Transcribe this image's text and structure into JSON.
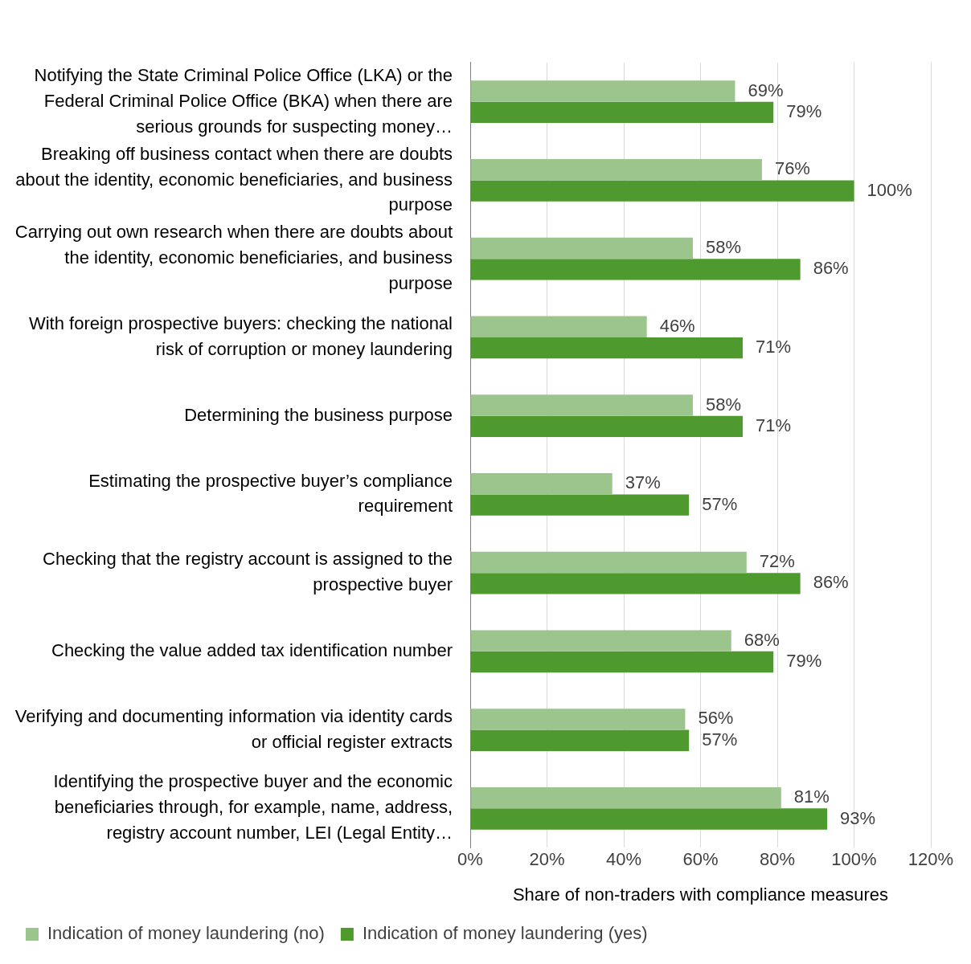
{
  "chart_data": {
    "type": "bar",
    "orientation": "horizontal",
    "xlabel": "Share of non-traders with compliance measures",
    "categories": [
      "Notifying the State Criminal Police Office (LKA) or the Federal Criminal Police Office (BKA) when there are serious grounds for suspecting money…",
      "Breaking off business contact when there are doubts about the identity, economic beneficiaries, and business purpose",
      "Carrying out own research when there are doubts about the identity, economic beneficiaries, and business purpose",
      "With foreign prospective buyers: checking the national risk of corruption or money laundering",
      "Determining the business purpose",
      "Estimating the prospective buyer’s compliance requirement",
      "Checking that the registry account is assigned to the prospective buyer",
      "Checking the value added tax identification number",
      "Verifying and documenting information via identity cards or official register extracts",
      "Identifying the prospective buyer and the economic beneficiaries through, for example, name, address, registry account number, LEI (Legal Entity…"
    ],
    "series": [
      {
        "name": "Indication of money laundering (no)",
        "color": "#9bc58c",
        "values": [
          69,
          76,
          58,
          46,
          58,
          37,
          72,
          68,
          56,
          81
        ],
        "value_labels": [
          "69%",
          "76%",
          "58%",
          "46%",
          "58%",
          "37%",
          "72%",
          "68%",
          "56%",
          "81%"
        ]
      },
      {
        "name": "Indication of money laundering (yes)",
        "color": "#4f9a2f",
        "values": [
          79,
          100,
          86,
          71,
          71,
          57,
          86,
          79,
          57,
          93
        ],
        "value_labels": [
          "79%",
          "100%",
          "86%",
          "71%",
          "71%",
          "57%",
          "86%",
          "79%",
          "57%",
          "93%"
        ]
      }
    ],
    "xlim": [
      0,
      120
    ],
    "xticks": [
      {
        "value": 0,
        "label": "0%"
      },
      {
        "value": 20,
        "label": "20%"
      },
      {
        "value": 40,
        "label": "40%"
      },
      {
        "value": 60,
        "label": "60%"
      },
      {
        "value": 80,
        "label": "80%"
      },
      {
        "value": 100,
        "label": "100%"
      },
      {
        "value": 120,
        "label": "120%"
      }
    ],
    "grid": "x",
    "legend": "bottom left"
  }
}
